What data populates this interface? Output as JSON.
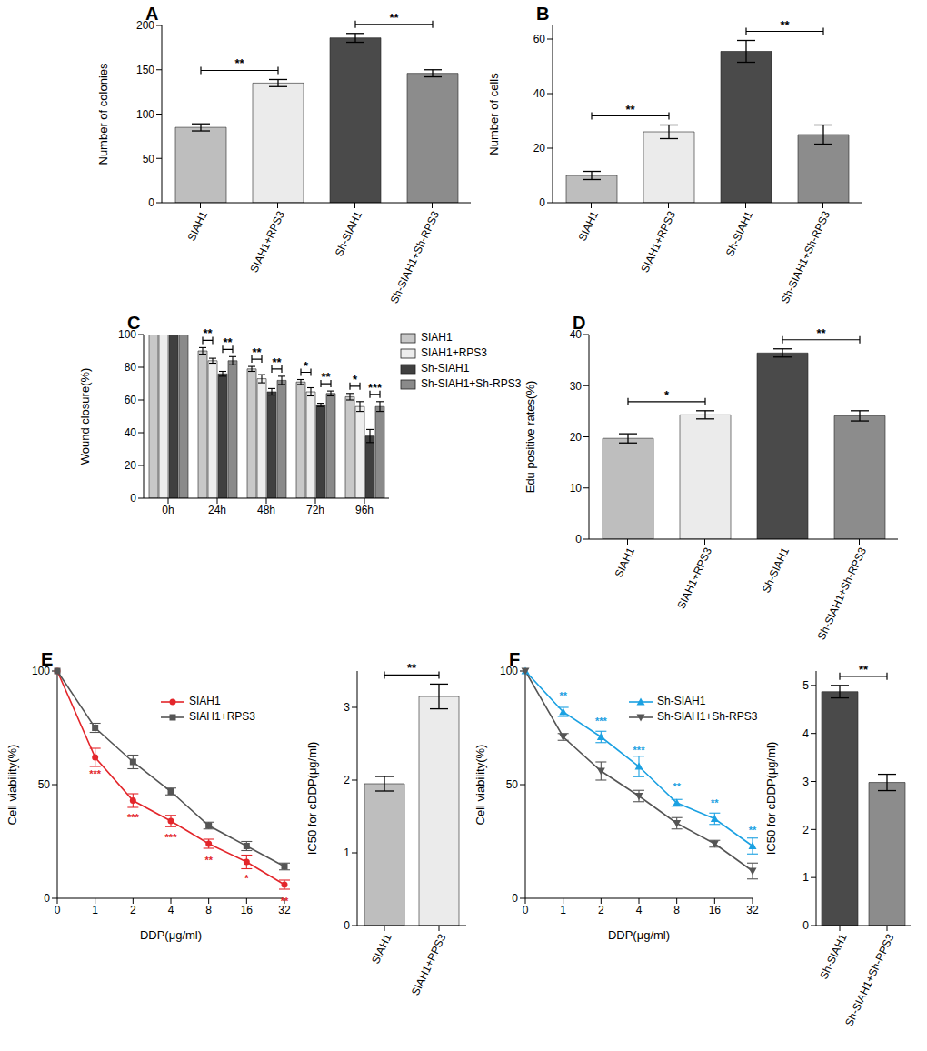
{
  "chart_data": [
    {
      "panel": "A",
      "type": "bar",
      "categories": [
        "SIAH1",
        "SIAH1+RPS3",
        "Sh-SIAH1",
        "Sh-SIAH1+Sh-RPS3"
      ],
      "values": [
        85,
        135,
        186,
        146
      ],
      "errors": [
        4,
        4,
        5,
        4
      ],
      "colors": [
        "#bebebe",
        "#ebebeb",
        "#4a4a4a",
        "#8c8c8c"
      ],
      "y_label": "Number of colonies",
      "ylim": [
        0,
        200
      ],
      "yticks": [
        0,
        50,
        100,
        150,
        200
      ],
      "significance": [
        {
          "between": [
            0,
            1
          ],
          "label": "**"
        },
        {
          "between": [
            2,
            3
          ],
          "label": "**"
        }
      ]
    },
    {
      "panel": "B",
      "type": "bar",
      "categories": [
        "SIAH1",
        "SIAH1+RPS3",
        "Sh-SIAH1",
        "Sh-SIAH1+Sh-RPS3"
      ],
      "values": [
        10,
        26,
        55.5,
        25
      ],
      "errors": [
        1.5,
        2.5,
        4,
        3.5
      ],
      "colors": [
        "#bebebe",
        "#ebebeb",
        "#4a4a4a",
        "#8c8c8c"
      ],
      "y_label": "Number of cells",
      "ylim": [
        0,
        65
      ],
      "yticks": [
        0,
        20,
        40,
        60
      ],
      "significance": [
        {
          "between": [
            0,
            1
          ],
          "label": "**"
        },
        {
          "between": [
            2,
            3
          ],
          "label": "**"
        }
      ]
    },
    {
      "panel": "C",
      "type": "bar",
      "categories": [
        "0h",
        "24h",
        "48h",
        "72h",
        "96h"
      ],
      "y_label": "Wound closure(%)",
      "ylim": [
        0,
        100
      ],
      "yticks": [
        0,
        20,
        40,
        60,
        80,
        100
      ],
      "legend": "upper right",
      "series": [
        {
          "name": "SIAH1",
          "color": "#c8c8c8",
          "values": [
            100,
            90,
            79,
            71,
            62
          ],
          "errors": [
            0,
            2,
            1.5,
            1.5,
            2
          ]
        },
        {
          "name": "SIAH1+RPS3",
          "color": "#ededed",
          "values": [
            100,
            84,
            73,
            65,
            56
          ],
          "errors": [
            0,
            1.5,
            2.5,
            2.5,
            3
          ]
        },
        {
          "name": "Sh-SIAH1",
          "color": "#404040",
          "values": [
            100,
            76,
            65,
            57,
            38
          ],
          "errors": [
            0,
            1.5,
            2,
            1,
            4
          ]
        },
        {
          "name": "Sh-SIAH1+Sh-RPS3",
          "color": "#8a8a8a",
          "values": [
            100,
            84,
            72,
            64,
            56
          ],
          "errors": [
            0,
            2.5,
            2.5,
            1.5,
            3
          ]
        }
      ],
      "significance": [
        {
          "category": "24h",
          "between": [
            0,
            1
          ],
          "label": "**"
        },
        {
          "category": "24h",
          "between": [
            2,
            3
          ],
          "label": "**"
        },
        {
          "category": "48h",
          "between": [
            0,
            1
          ],
          "label": "**"
        },
        {
          "category": "48h",
          "between": [
            2,
            3
          ],
          "label": "**"
        },
        {
          "category": "72h",
          "between": [
            0,
            1
          ],
          "label": "*"
        },
        {
          "category": "72h",
          "between": [
            2,
            3
          ],
          "label": "**"
        },
        {
          "category": "96h",
          "between": [
            0,
            1
          ],
          "label": "*"
        },
        {
          "category": "96h",
          "between": [
            2,
            3
          ],
          "label": "***"
        }
      ]
    },
    {
      "panel": "D",
      "type": "bar",
      "categories": [
        "SIAH1",
        "SIAH1+RPS3",
        "Sh-SIAH1",
        "Sh-SIAH1+Sh-RPS3"
      ],
      "values": [
        19.7,
        24.3,
        36.4,
        24.1
      ],
      "errors": [
        0.9,
        0.8,
        0.8,
        1.0
      ],
      "colors": [
        "#bebebe",
        "#ebebeb",
        "#4a4a4a",
        "#8c8c8c"
      ],
      "y_label": "Edu positive rates(%)",
      "ylim": [
        0,
        40
      ],
      "yticks": [
        0,
        10,
        20,
        30,
        40
      ],
      "significance": [
        {
          "between": [
            0,
            1
          ],
          "label": "*"
        },
        {
          "between": [
            2,
            3
          ],
          "label": "**"
        }
      ]
    },
    {
      "panel": "E",
      "type": "line",
      "categories": [
        "0",
        "1",
        "2",
        "4",
        "8",
        "16",
        "32"
      ],
      "x_label": "DDP(μg/ml)",
      "y_label": "Cell viability(%)",
      "ylim": [
        0,
        100
      ],
      "yticks": [
        0,
        50,
        100
      ],
      "legend": "upper right",
      "series": [
        {
          "name": "SIAH1",
          "color": "#e3262b",
          "marker": "circle",
          "values": [
            100,
            62,
            43,
            34,
            24,
            16,
            6
          ],
          "errors": [
            0,
            4,
            3,
            2.5,
            2,
            3,
            2
          ],
          "point_labels": [
            null,
            "***",
            "***",
            "***",
            "**",
            "*",
            "**"
          ]
        },
        {
          "name": "SIAH1+RPS3",
          "color": "#555555",
          "marker": "square",
          "values": [
            100,
            75,
            60,
            47,
            32,
            23,
            14
          ],
          "errors": [
            0,
            2,
            3,
            1.5,
            1.5,
            2,
            1.5
          ],
          "point_labels": [
            null,
            null,
            null,
            null,
            null,
            null,
            null
          ]
        }
      ]
    },
    {
      "type": "bar",
      "categories": [
        "SIAH1",
        "SIAH1+RPS3"
      ],
      "values": [
        1.95,
        3.15
      ],
      "errors": [
        0.1,
        0.17
      ],
      "colors": [
        "#bebebe",
        "#ebebeb"
      ],
      "y_label": "IC50 for cDDP(μg/ml)",
      "ylim": [
        0,
        3.5
      ],
      "yticks": [
        0,
        1,
        2,
        3
      ],
      "significance": [
        {
          "between": [
            0,
            1
          ],
          "label": "**"
        }
      ]
    },
    {
      "panel": "F",
      "type": "line",
      "categories": [
        "0",
        "1",
        "2",
        "4",
        "8",
        "16",
        "32"
      ],
      "x_label": "DDP(μg/ml)",
      "y_label": "Cell viability(%)",
      "ylim": [
        0,
        100
      ],
      "yticks": [
        0,
        50,
        100
      ],
      "legend": "upper right",
      "series": [
        {
          "name": "Sh-SIAH1",
          "color": "#1ba1e2",
          "marker": "triangle",
          "values": [
            100,
            82,
            71,
            58,
            42,
            35,
            23
          ],
          "errors": [
            0,
            2,
            2.5,
            4.5,
            1.5,
            2.5,
            3.5
          ],
          "point_labels": [
            null,
            "**",
            "***",
            "***",
            "**",
            "**",
            "**"
          ]
        },
        {
          "name": "Sh-SIAH1+Sh-RPS3",
          "color": "#555555",
          "marker": "triangle-down",
          "values": [
            100,
            71,
            56,
            45,
            33,
            24,
            12
          ],
          "errors": [
            0,
            1.5,
            4,
            2.5,
            2.5,
            1.5,
            3.5
          ],
          "point_labels": [
            null,
            null,
            null,
            null,
            null,
            null,
            null
          ]
        }
      ]
    },
    {
      "type": "bar",
      "categories": [
        "Sh-SIAH1",
        "Sh-SIAH1+Sh-RPS3"
      ],
      "values": [
        4.87,
        2.98
      ],
      "errors": [
        0.13,
        0.17
      ],
      "colors": [
        "#4a4a4a",
        "#8c8c8c"
      ],
      "y_label": "IC50 for cDDP(μg/ml)",
      "ylim": [
        0,
        5.3
      ],
      "yticks": [
        0,
        1,
        2,
        3,
        4,
        5
      ],
      "significance": [
        {
          "between": [
            0,
            1
          ],
          "label": "**"
        }
      ]
    }
  ]
}
